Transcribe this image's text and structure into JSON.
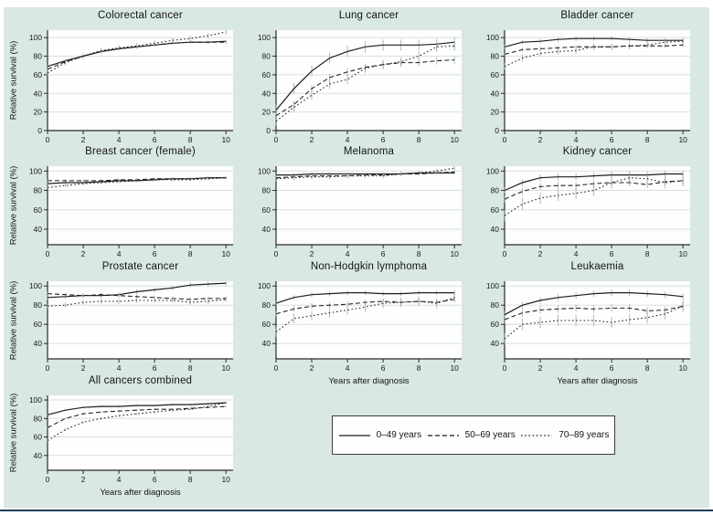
{
  "figure": {
    "background_color": "#d9e8e0",
    "plot_background_color": "#fdfefd",
    "gridline_color": "#d6e2da",
    "line_color": "#1c1c1c",
    "error_bar_color": "#9aa39c",
    "bottom_rule_color": "#1d3c59"
  },
  "legend": {
    "entries": [
      {
        "label": "0–49 years",
        "style": "solid"
      },
      {
        "label": "50–69 years",
        "style": "dashed"
      },
      {
        "label": "70–89 years",
        "style": "dotted"
      }
    ]
  },
  "chart_data": {
    "type": "line",
    "x": [
      0,
      1,
      2,
      3,
      4,
      5,
      6,
      7,
      8,
      9,
      10
    ],
    "xticks": [
      0,
      2,
      4,
      6,
      8,
      10
    ],
    "xlabel": "Years after diagnosis",
    "ylabel": "Relative survival (%)",
    "legend_position": "bottom-center-box",
    "grid": "horizontal",
    "panels": [
      {
        "title": "Colorectal cancer",
        "ylim": [
          0,
          108
        ],
        "yticks": [
          0,
          20,
          40,
          60,
          80,
          100
        ],
        "series": [
          {
            "name": "0–49 years",
            "style": "solid",
            "err": 1.5,
            "values": [
              69,
              75,
              80,
              85,
              88,
              90,
              92,
              94,
              95,
              95,
              96
            ]
          },
          {
            "name": "50–69 years",
            "style": "dashed",
            "err": 1.5,
            "values": [
              66,
              74,
              80,
              85,
              88,
              90,
              92,
              94,
              95,
              95,
              95
            ]
          },
          {
            "name": "70–89 years",
            "style": "dotted",
            "err": 3,
            "values": [
              62,
              73,
              80,
              86,
              89,
              91,
              94,
              97,
              99,
              102,
              106
            ]
          }
        ]
      },
      {
        "title": "Lung cancer",
        "ylim": [
          0,
          108
        ],
        "yticks": [
          0,
          20,
          40,
          60,
          80,
          100
        ],
        "series": [
          {
            "name": "0–49 years",
            "style": "solid",
            "err": 6,
            "values": [
              22,
              45,
              64,
              78,
              85,
              90,
              92,
              92,
              92,
              93,
              95
            ]
          },
          {
            "name": "50–69 years",
            "style": "dashed",
            "err": 4,
            "values": [
              16,
              28,
              45,
              57,
              63,
              68,
              71,
              73,
              73,
              75,
              76
            ]
          },
          {
            "name": "70–89 years",
            "style": "dotted",
            "err": 5,
            "values": [
              10,
              25,
              38,
              50,
              55,
              67,
              71,
              74,
              80,
              90,
              91
            ]
          }
        ]
      },
      {
        "title": "Bladder cancer",
        "ylim": [
          0,
          108
        ],
        "yticks": [
          0,
          20,
          40,
          60,
          80,
          100
        ],
        "series": [
          {
            "name": "0–49 years",
            "style": "solid",
            "err": 2.5,
            "values": [
              90,
              95,
              96,
              98,
              99,
              99,
              99,
              98,
              97,
              97,
              97
            ]
          },
          {
            "name": "50–69 years",
            "style": "dashed",
            "err": 2,
            "values": [
              82,
              87,
              88,
              89,
              90,
              90,
              90,
              91,
              91,
              91,
              92
            ]
          },
          {
            "name": "70–89 years",
            "style": "dotted",
            "err": 3.5,
            "values": [
              69,
              78,
              83,
              85,
              86,
              90,
              90,
              91,
              92,
              95,
              96
            ]
          }
        ]
      },
      {
        "title": "Breast cancer (female)",
        "ylim": [
          24,
          105
        ],
        "yticks": [
          40,
          60,
          80,
          100
        ],
        "series": [
          {
            "name": "0–49 years",
            "style": "solid",
            "err": 1.5,
            "values": [
              87,
              88,
              88,
              89,
              90,
              90,
              91,
              92,
              92,
              93,
              93
            ]
          },
          {
            "name": "50–69 years",
            "style": "dashed",
            "err": 1.5,
            "values": [
              90,
              90,
              90,
              90,
              91,
              91,
              92,
              92,
              92,
              93,
              93
            ]
          },
          {
            "name": "70–89 years",
            "style": "dotted",
            "err": 1.5,
            "values": [
              83,
              85,
              87,
              88,
              89,
              90,
              91,
              91,
              91,
              92,
              93
            ]
          }
        ]
      },
      {
        "title": "Melanoma",
        "ylim": [
          24,
          105
        ],
        "yticks": [
          40,
          60,
          80,
          100
        ],
        "series": [
          {
            "name": "0–49 years",
            "style": "solid",
            "err": 1.5,
            "values": [
              96,
              96,
              97,
              97,
              97,
              97,
              97,
              97,
              98,
              98,
              98
            ]
          },
          {
            "name": "50–69 years",
            "style": "dashed",
            "err": 1.5,
            "values": [
              93,
              94,
              95,
              95,
              95,
              96,
              96,
              97,
              97,
              98,
              99
            ]
          },
          {
            "name": "70–89 years",
            "style": "dotted",
            "err": 2.5,
            "values": [
              92,
              93,
              94,
              94,
              95,
              95,
              95,
              97,
              98,
              100,
              103
            ]
          }
        ]
      },
      {
        "title": "Kidney cancer",
        "ylim": [
          24,
          105
        ],
        "yticks": [
          40,
          60,
          80,
          100
        ],
        "series": [
          {
            "name": "0–49 years",
            "style": "solid",
            "err": 3.5,
            "values": [
              80,
              88,
              93,
              94,
              94,
              95,
              96,
              96,
              96,
              97,
              97
            ]
          },
          {
            "name": "50–69 years",
            "style": "dashed",
            "err": 3.5,
            "values": [
              71,
              79,
              84,
              85,
              85,
              87,
              88,
              88,
              86,
              89,
              90
            ]
          },
          {
            "name": "70–89 years",
            "style": "dotted",
            "err": 6,
            "values": [
              54,
              66,
              72,
              75,
              77,
              80,
              88,
              93,
              92,
              88,
              90
            ]
          }
        ]
      },
      {
        "title": "Prostate cancer",
        "ylim": [
          24,
          105
        ],
        "yticks": [
          40,
          60,
          80,
          100
        ],
        "series": [
          {
            "name": "0–49 years",
            "style": "solid",
            "err": 2.5,
            "values": [
              88,
              89,
              90,
              90,
              91,
              94,
              96,
              98,
              101,
              102,
              103
            ]
          },
          {
            "name": "50–69 years",
            "style": "dashed",
            "err": 2,
            "values": [
              92,
              91,
              90,
              91,
              90,
              89,
              88,
              87,
              86,
              87,
              87
            ]
          },
          {
            "name": "70–89 years",
            "style": "dotted",
            "err": 2.5,
            "values": [
              79,
              80,
              83,
              84,
              84,
              85,
              85,
              85,
              83,
              84,
              86
            ]
          }
        ]
      },
      {
        "title": "Non-Hodgkin lymphoma",
        "ylim": [
          24,
          105
        ],
        "yticks": [
          40,
          60,
          80,
          100
        ],
        "series": [
          {
            "name": "0–49 years",
            "style": "solid",
            "err": 2.5,
            "values": [
              82,
              88,
              91,
              92,
              93,
              93,
              92,
              92,
              93,
              93,
              93
            ]
          },
          {
            "name": "50–69 years",
            "style": "dashed",
            "err": 3,
            "values": [
              71,
              76,
              79,
              80,
              81,
              83,
              84,
              83,
              84,
              83,
              86
            ]
          },
          {
            "name": "70–89 years",
            "style": "dotted",
            "err": 5,
            "values": [
              52,
              66,
              69,
              72,
              75,
              78,
              82,
              83,
              84,
              82,
              88
            ]
          }
        ]
      },
      {
        "title": "Leukaemia",
        "ylim": [
          24,
          105
        ],
        "yticks": [
          40,
          60,
          80,
          100
        ],
        "series": [
          {
            "name": "0–49 years",
            "style": "solid",
            "err": 3.5,
            "values": [
              70,
              80,
              85,
              88,
              90,
              92,
              93,
              93,
              92,
              91,
              89
            ]
          },
          {
            "name": "50–69 years",
            "style": "dashed",
            "err": 4,
            "values": [
              65,
              72,
              75,
              76,
              77,
              76,
              77,
              77,
              74,
              75,
              79
            ]
          },
          {
            "name": "70–89 years",
            "style": "dotted",
            "err": 6,
            "values": [
              45,
              60,
              62,
              64,
              64,
              64,
              62,
              65,
              67,
              71,
              79
            ]
          }
        ]
      },
      {
        "title": "All cancers combined",
        "ylim": [
          24,
          105
        ],
        "yticks": [
          40,
          60,
          80,
          100
        ],
        "series": [
          {
            "name": "0–49 years",
            "style": "solid",
            "err": 1,
            "values": [
              84,
              89,
              92,
              93,
              93,
              94,
              94,
              95,
              95,
              96,
              97
            ]
          },
          {
            "name": "50–69 years",
            "style": "dashed",
            "err": 1,
            "values": [
              70,
              80,
              85,
              87,
              88,
              89,
              90,
              90,
              91,
              92,
              93
            ]
          },
          {
            "name": "70–89 years",
            "style": "dotted",
            "err": 1.5,
            "values": [
              56,
              68,
              76,
              80,
              83,
              85,
              87,
              89,
              90,
              93,
              97
            ]
          }
        ]
      }
    ]
  }
}
